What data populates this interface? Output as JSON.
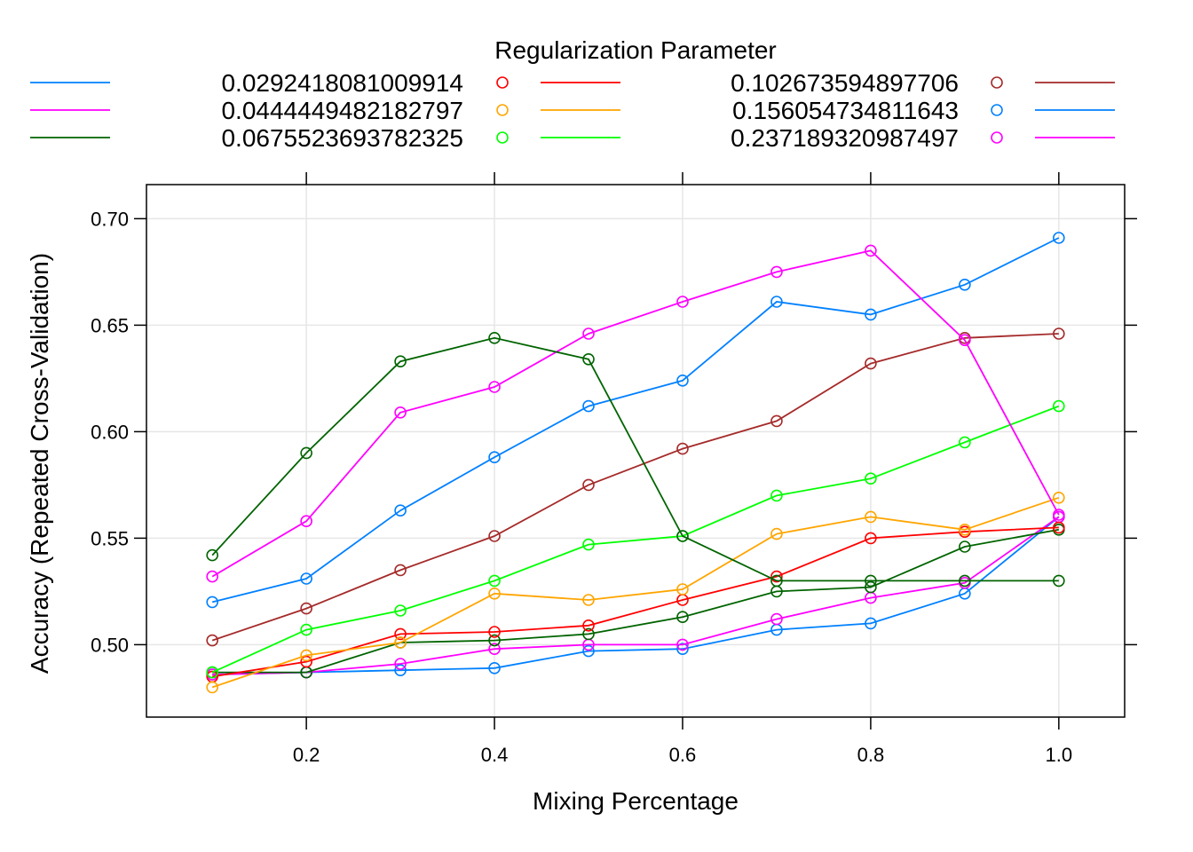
{
  "chart_data": {
    "type": "line",
    "title": "",
    "xlabel": "Mixing Percentage",
    "ylabel": "Accuracy (Repeated Cross-Validation)",
    "xlim": [
      0.03,
      1.07
    ],
    "ylim": [
      0.466,
      0.716
    ],
    "grid": true,
    "x": [
      0.1,
      0.2,
      0.3,
      0.4,
      0.5,
      0.6,
      0.7,
      0.8,
      0.9,
      1.0
    ],
    "x_ticks": [
      "0.2",
      "0.4",
      "0.6",
      "0.8",
      "1.0"
    ],
    "x_tick_values": [
      0.2,
      0.4,
      0.6,
      0.8,
      1.0
    ],
    "y_ticks": [
      "0.50",
      "0.55",
      "0.60",
      "0.65",
      "0.70"
    ],
    "y_tick_values": [
      0.5,
      0.55,
      0.6,
      0.65,
      0.7
    ],
    "legend": {
      "title": "Regularization Parameter",
      "placement": "top",
      "entries": [
        {
          "label": "0.0292418081009914",
          "color": "#ff0000",
          "lead_color": "#0080ff"
        },
        {
          "label": "0.0444449482182797",
          "color": "#ffa500",
          "lead_color": "#ff00ff"
        },
        {
          "label": "0.0675523693782325",
          "color": "#00ff00",
          "lead_color": "#006400"
        },
        {
          "label": "0.102673594897706",
          "color": "#a52a2a"
        },
        {
          "label": "0.156054734811643",
          "color": "#0080ff"
        },
        {
          "label": "0.237189320987497",
          "color": "#ff00ff"
        }
      ]
    },
    "series": [
      {
        "name": "blue-low",
        "color": "#0080ff",
        "values": [
          0.486,
          0.487,
          0.488,
          0.489,
          0.497,
          0.498,
          0.507,
          0.51,
          0.524,
          0.56
        ]
      },
      {
        "name": "magenta-low",
        "color": "#ff00ff",
        "values": [
          0.486,
          0.487,
          0.491,
          0.498,
          0.5,
          0.5,
          0.512,
          0.522,
          0.529,
          0.56
        ]
      },
      {
        "name": "darkgreen-low",
        "color": "#006400",
        "values": [
          0.487,
          0.487,
          0.501,
          0.502,
          0.505,
          0.513,
          0.525,
          0.527,
          0.546,
          0.554
        ]
      },
      {
        "name": "red",
        "color": "#ff0000",
        "values": [
          0.485,
          0.492,
          0.505,
          0.506,
          0.509,
          0.521,
          0.532,
          0.55,
          0.553,
          0.555
        ]
      },
      {
        "name": "orange",
        "color": "#ffa500",
        "values": [
          0.48,
          0.495,
          0.501,
          0.524,
          0.521,
          0.526,
          0.552,
          0.56,
          0.554,
          0.569
        ]
      },
      {
        "name": "green",
        "color": "#00ff00",
        "values": [
          0.487,
          0.507,
          0.516,
          0.53,
          0.547,
          0.551,
          0.57,
          0.578,
          0.595,
          0.612
        ]
      },
      {
        "name": "brown",
        "color": "#a52a2a",
        "values": [
          0.502,
          0.517,
          0.535,
          0.551,
          0.575,
          0.592,
          0.605,
          0.632,
          0.644,
          0.646
        ]
      },
      {
        "name": "blue-high",
        "color": "#0080ff",
        "values": [
          0.52,
          0.531,
          0.563,
          0.588,
          0.612,
          0.624,
          0.661,
          0.655,
          0.669,
          0.691
        ]
      },
      {
        "name": "magenta-high",
        "color": "#ff00ff",
        "values": [
          0.532,
          0.558,
          0.609,
          0.621,
          0.646,
          0.661,
          0.675,
          0.685,
          0.643,
          0.561
        ]
      },
      {
        "name": "darkgreen-high",
        "color": "#006400",
        "values": [
          0.542,
          0.59,
          0.633,
          0.644,
          0.634,
          0.551,
          0.53,
          0.53,
          0.53,
          0.53
        ]
      }
    ]
  }
}
